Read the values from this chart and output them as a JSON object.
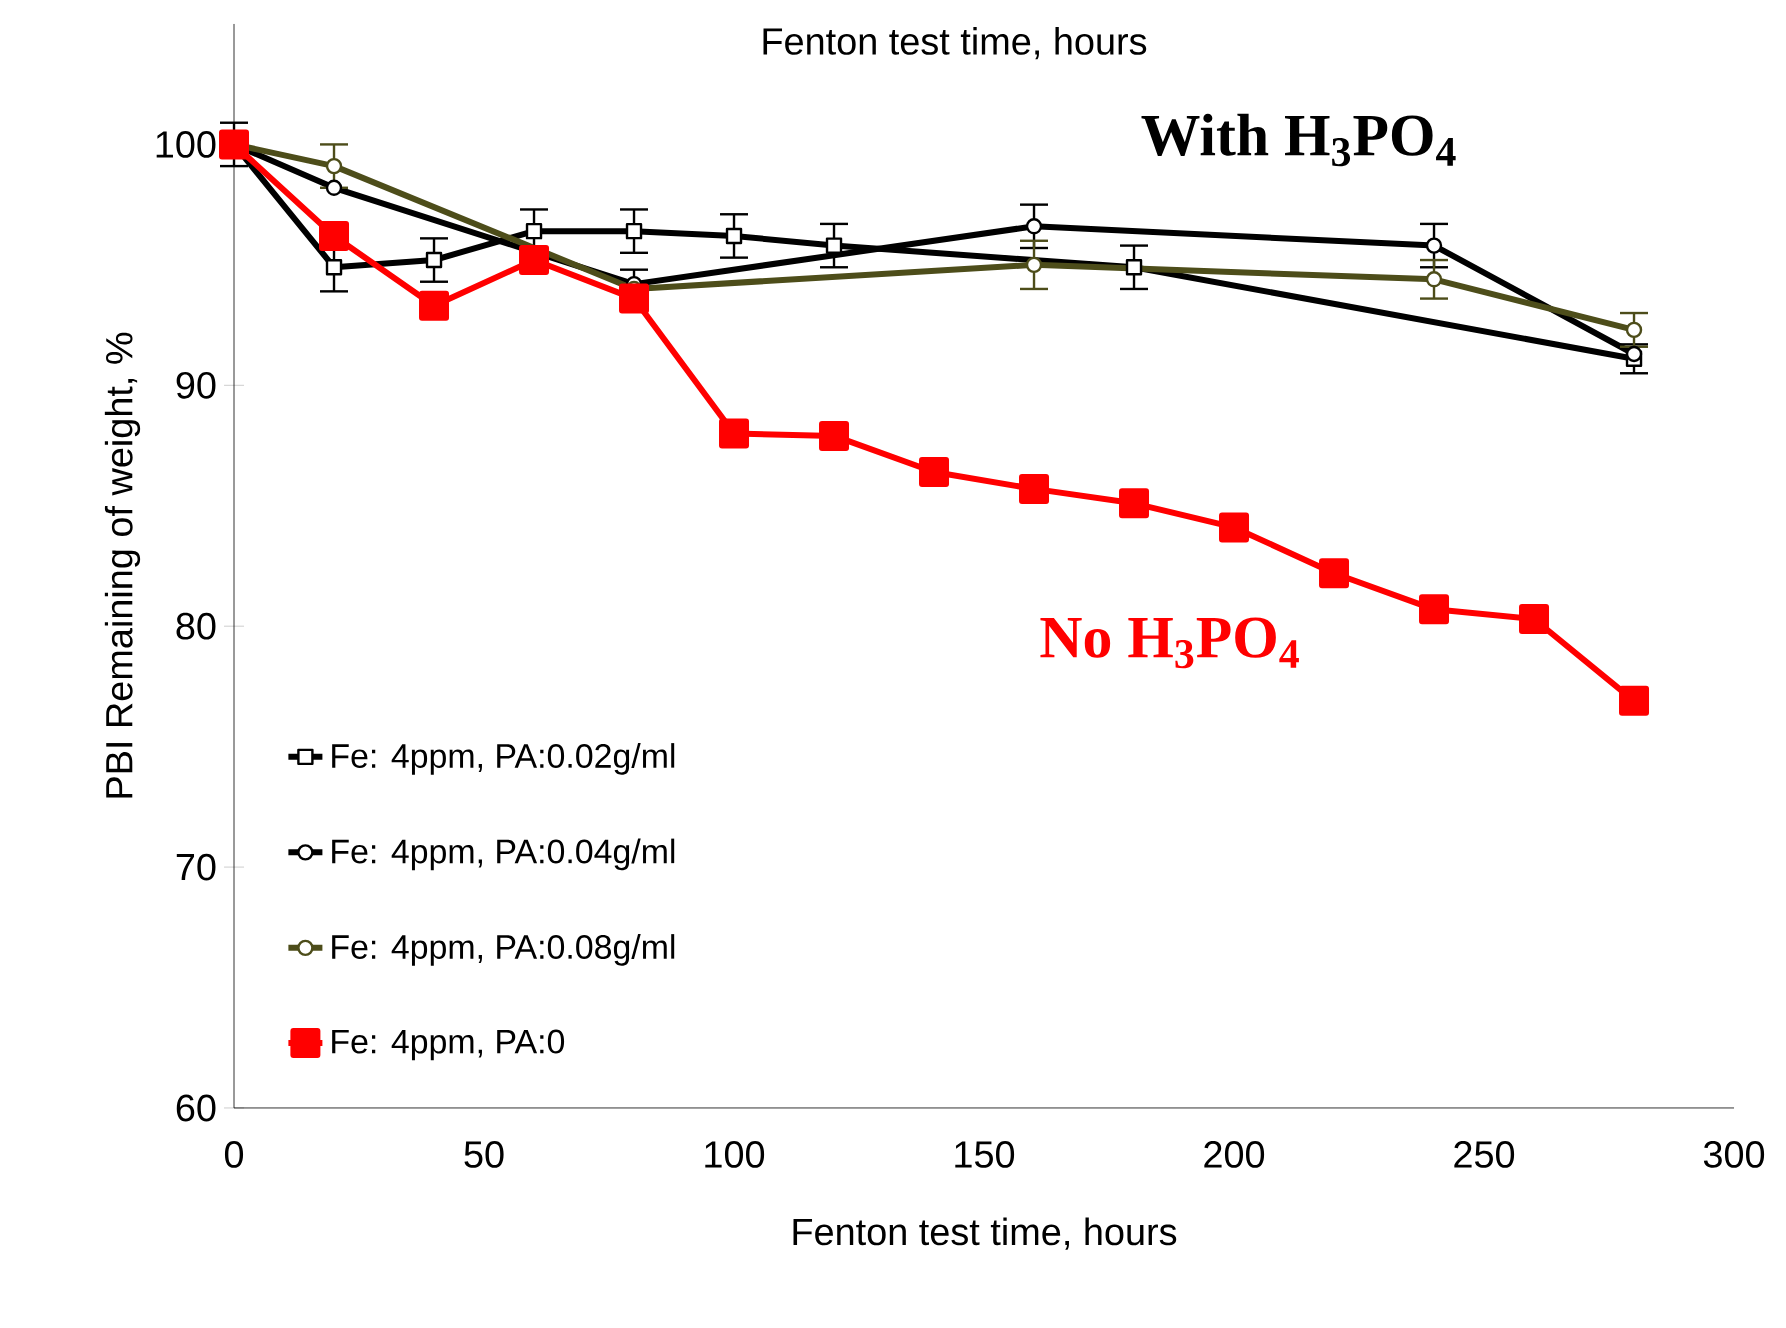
{
  "chart_data": {
    "type": "line",
    "title": "Fenton test time, hours",
    "xlabel": "Fenton test time, hours",
    "ylabel": "PBI Remaining of weight,  %",
    "xlim": [
      0,
      300
    ],
    "ylim": [
      60,
      105
    ],
    "xticks": [
      0,
      50,
      100,
      150,
      200,
      250,
      300
    ],
    "yticks": [
      60,
      70,
      80,
      90,
      100
    ],
    "legend": "bottom left",
    "grid": false,
    "annotations": [
      "With H$_{3}$PO$_{4}$",
      "No H$_{3}$PO$_{4}$"
    ],
    "series": [
      {
        "name": "Fe: 4ppm, PA:0.02g/ml",
        "color": "#000000",
        "marker": "square",
        "x": [
          0,
          20,
          40,
          60,
          80,
          100,
          120,
          180,
          280
        ],
        "values": [
          100,
          94.9,
          95.2,
          96.4,
          96.4,
          96.2,
          95.8,
          94.9,
          91.1
        ],
        "errors": [
          0.9,
          1.0,
          0.9,
          0.9,
          0.9,
          0.9,
          0.9,
          0.9,
          0.6
        ]
      },
      {
        "name": "Fe: 4ppm, PA:0.04g/ml",
        "color": "#000000",
        "marker": "circle",
        "x": [
          0,
          20,
          80,
          160,
          240,
          280
        ],
        "values": [
          100,
          98.2,
          94.2,
          96.6,
          95.8,
          91.3
        ],
        "errors": [
          null,
          null,
          0.6,
          0.9,
          0.9,
          null
        ]
      },
      {
        "name": "Fe: 4ppm, PA:0.08g/ml",
        "color": "#4d4d1a",
        "marker": "circle",
        "x": [
          0,
          20,
          80,
          160,
          240,
          280
        ],
        "values": [
          100,
          99.1,
          94.0,
          95.0,
          94.4,
          92.3
        ],
        "errors": [
          null,
          0.9,
          null,
          1.0,
          0.8,
          0.7
        ]
      },
      {
        "name": "Fe: 4ppm, PA:0",
        "color": "#ff0000",
        "marker": "square",
        "x": [
          0,
          20,
          40,
          60,
          80,
          100,
          120,
          140,
          160,
          180,
          200,
          220,
          240,
          260,
          280
        ],
        "values": [
          100,
          96.2,
          93.3,
          95.2,
          93.6,
          88.0,
          87.9,
          86.4,
          85.7,
          85.1,
          84.1,
          82.2,
          80.7,
          80.3,
          76.9
        ]
      }
    ]
  }
}
